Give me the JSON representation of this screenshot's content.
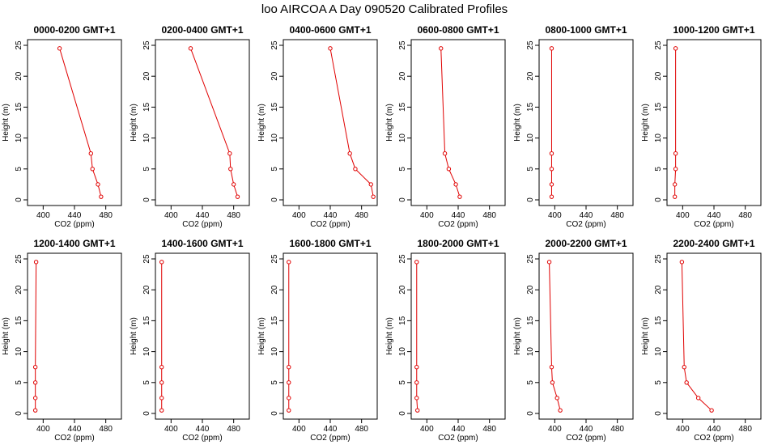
{
  "figure": {
    "title": "loo AIRCOA A  Day 090520  Calibrated Profiles"
  },
  "colors": {
    "series": "#e00000",
    "axis": "#000000",
    "background": "#ffffff"
  },
  "chart_data": [
    {
      "type": "line",
      "title": "0000-0200 GMT+1",
      "xlabel": "CO2 (ppm)",
      "ylabel": "Height (m)",
      "xlim": [
        380,
        500
      ],
      "ylim": [
        0,
        25
      ],
      "x_ticks": [
        400,
        440,
        480
      ],
      "y_ticks": [
        0,
        5,
        10,
        15,
        20,
        25
      ],
      "grid": false,
      "series": [
        {
          "points": [
            {
              "x": 474,
              "y": 0.5
            },
            {
              "x": 470,
              "y": 2.5
            },
            {
              "x": 463,
              "y": 5
            },
            {
              "x": 461,
              "y": 7.5
            },
            {
              "x": 421,
              "y": 24.5
            }
          ]
        }
      ]
    },
    {
      "type": "line",
      "title": "0200-0400 GMT+1",
      "xlabel": "CO2 (ppm)",
      "ylabel": "Height (m)",
      "xlim": [
        380,
        500
      ],
      "ylim": [
        0,
        25
      ],
      "x_ticks": [
        400,
        440,
        480
      ],
      "y_ticks": [
        0,
        5,
        10,
        15,
        20,
        25
      ],
      "grid": false,
      "series": [
        {
          "points": [
            {
              "x": 485,
              "y": 0.5
            },
            {
              "x": 480,
              "y": 2.5
            },
            {
              "x": 476,
              "y": 5
            },
            {
              "x": 475,
              "y": 7.5
            },
            {
              "x": 425,
              "y": 24.5
            }
          ]
        }
      ]
    },
    {
      "type": "line",
      "title": "0400-0600 GMT+1",
      "xlabel": "CO2 (ppm)",
      "ylabel": "Height (m)",
      "xlim": [
        380,
        500
      ],
      "ylim": [
        0,
        25
      ],
      "x_ticks": [
        400,
        440,
        480
      ],
      "y_ticks": [
        0,
        5,
        10,
        15,
        20,
        25
      ],
      "grid": false,
      "series": [
        {
          "points": [
            {
              "x": 495,
              "y": 0.5
            },
            {
              "x": 492,
              "y": 2.5
            },
            {
              "x": 472,
              "y": 5
            },
            {
              "x": 465,
              "y": 7.5
            },
            {
              "x": 440,
              "y": 24.5
            }
          ]
        }
      ]
    },
    {
      "type": "line",
      "title": "0600-0800 GMT+1",
      "xlabel": "CO2 (ppm)",
      "ylabel": "Height (m)",
      "xlim": [
        380,
        500
      ],
      "ylim": [
        0,
        25
      ],
      "x_ticks": [
        400,
        440,
        480
      ],
      "y_ticks": [
        0,
        5,
        10,
        15,
        20,
        25
      ],
      "grid": false,
      "series": [
        {
          "points": [
            {
              "x": 442,
              "y": 0.5
            },
            {
              "x": 437,
              "y": 2.5
            },
            {
              "x": 428,
              "y": 5
            },
            {
              "x": 423,
              "y": 7.5
            },
            {
              "x": 418,
              "y": 24.5
            }
          ]
        }
      ]
    },
    {
      "type": "line",
      "title": "0800-1000 GMT+1",
      "xlabel": "CO2 (ppm)",
      "ylabel": "Height (m)",
      "xlim": [
        380,
        500
      ],
      "ylim": [
        0,
        25
      ],
      "x_ticks": [
        400,
        440,
        480
      ],
      "y_ticks": [
        0,
        5,
        10,
        15,
        20,
        25
      ],
      "grid": false,
      "series": [
        {
          "points": [
            {
              "x": 396,
              "y": 0.5
            },
            {
              "x": 396,
              "y": 2.5
            },
            {
              "x": 396,
              "y": 5
            },
            {
              "x": 396,
              "y": 7.5
            },
            {
              "x": 396,
              "y": 24.5
            }
          ]
        }
      ]
    },
    {
      "type": "line",
      "title": "1000-1200 GMT+1",
      "xlabel": "CO2 (ppm)",
      "ylabel": "Height (m)",
      "xlim": [
        380,
        500
      ],
      "ylim": [
        0,
        25
      ],
      "x_ticks": [
        400,
        440,
        480
      ],
      "y_ticks": [
        0,
        5,
        10,
        15,
        20,
        25
      ],
      "grid": false,
      "series": [
        {
          "points": [
            {
              "x": 390,
              "y": 0.5
            },
            {
              "x": 390,
              "y": 2.5
            },
            {
              "x": 391,
              "y": 5
            },
            {
              "x": 391,
              "y": 7.5
            },
            {
              "x": 391,
              "y": 24.5
            }
          ]
        }
      ]
    },
    {
      "type": "line",
      "title": "1200-1400 GMT+1",
      "xlabel": "CO2 (ppm)",
      "ylabel": "Height (m)",
      "xlim": [
        380,
        500
      ],
      "ylim": [
        0,
        25
      ],
      "x_ticks": [
        400,
        440,
        480
      ],
      "y_ticks": [
        0,
        5,
        10,
        15,
        20,
        25
      ],
      "grid": false,
      "series": [
        {
          "points": [
            {
              "x": 390,
              "y": 0.5
            },
            {
              "x": 390,
              "y": 2.5
            },
            {
              "x": 390,
              "y": 5
            },
            {
              "x": 390,
              "y": 7.5
            },
            {
              "x": 391,
              "y": 24.5
            }
          ]
        }
      ]
    },
    {
      "type": "line",
      "title": "1400-1600 GMT+1",
      "xlabel": "CO2 (ppm)",
      "ylabel": "Height (m)",
      "xlim": [
        380,
        500
      ],
      "ylim": [
        0,
        25
      ],
      "x_ticks": [
        400,
        440,
        480
      ],
      "y_ticks": [
        0,
        5,
        10,
        15,
        20,
        25
      ],
      "grid": false,
      "series": [
        {
          "points": [
            {
              "x": 388,
              "y": 0.5
            },
            {
              "x": 388,
              "y": 2.5
            },
            {
              "x": 388,
              "y": 5
            },
            {
              "x": 388,
              "y": 7.5
            },
            {
              "x": 388,
              "y": 24.5
            }
          ]
        }
      ]
    },
    {
      "type": "line",
      "title": "1600-1800 GMT+1",
      "xlabel": "CO2 (ppm)",
      "ylabel": "Height (m)",
      "xlim": [
        380,
        500
      ],
      "ylim": [
        0,
        25
      ],
      "x_ticks": [
        400,
        440,
        480
      ],
      "y_ticks": [
        0,
        5,
        10,
        15,
        20,
        25
      ],
      "grid": false,
      "series": [
        {
          "points": [
            {
              "x": 387,
              "y": 0.5
            },
            {
              "x": 387,
              "y": 2.5
            },
            {
              "x": 387,
              "y": 5
            },
            {
              "x": 387,
              "y": 7.5
            },
            {
              "x": 387,
              "y": 24.5
            }
          ]
        }
      ]
    },
    {
      "type": "line",
      "title": "1800-2000 GMT+1",
      "xlabel": "CO2 (ppm)",
      "ylabel": "Height (m)",
      "xlim": [
        380,
        500
      ],
      "ylim": [
        0,
        25
      ],
      "x_ticks": [
        400,
        440,
        480
      ],
      "y_ticks": [
        0,
        5,
        10,
        15,
        20,
        25
      ],
      "grid": false,
      "series": [
        {
          "points": [
            {
              "x": 388,
              "y": 0.5
            },
            {
              "x": 387,
              "y": 2.5
            },
            {
              "x": 387,
              "y": 5
            },
            {
              "x": 387,
              "y": 7.5
            },
            {
              "x": 387,
              "y": 24.5
            }
          ]
        }
      ]
    },
    {
      "type": "line",
      "title": "2000-2200 GMT+1",
      "xlabel": "CO2 (ppm)",
      "ylabel": "Height (m)",
      "xlim": [
        380,
        500
      ],
      "ylim": [
        0,
        25
      ],
      "x_ticks": [
        400,
        440,
        480
      ],
      "y_ticks": [
        0,
        5,
        10,
        15,
        20,
        25
      ],
      "grid": false,
      "series": [
        {
          "points": [
            {
              "x": 407,
              "y": 0.5
            },
            {
              "x": 403,
              "y": 2.5
            },
            {
              "x": 397,
              "y": 5
            },
            {
              "x": 396,
              "y": 7.5
            },
            {
              "x": 393,
              "y": 24.5
            }
          ]
        }
      ]
    },
    {
      "type": "line",
      "title": "2200-2400 GMT+1",
      "xlabel": "CO2 (ppm)",
      "ylabel": "Height (m)",
      "xlim": [
        380,
        500
      ],
      "ylim": [
        0,
        25
      ],
      "x_ticks": [
        400,
        440,
        480
      ],
      "y_ticks": [
        0,
        5,
        10,
        15,
        20,
        25
      ],
      "grid": false,
      "series": [
        {
          "points": [
            {
              "x": 437,
              "y": 0.5
            },
            {
              "x": 420,
              "y": 2.5
            },
            {
              "x": 405,
              "y": 5
            },
            {
              "x": 402,
              "y": 7.5
            },
            {
              "x": 399,
              "y": 24.5
            }
          ]
        }
      ]
    }
  ]
}
